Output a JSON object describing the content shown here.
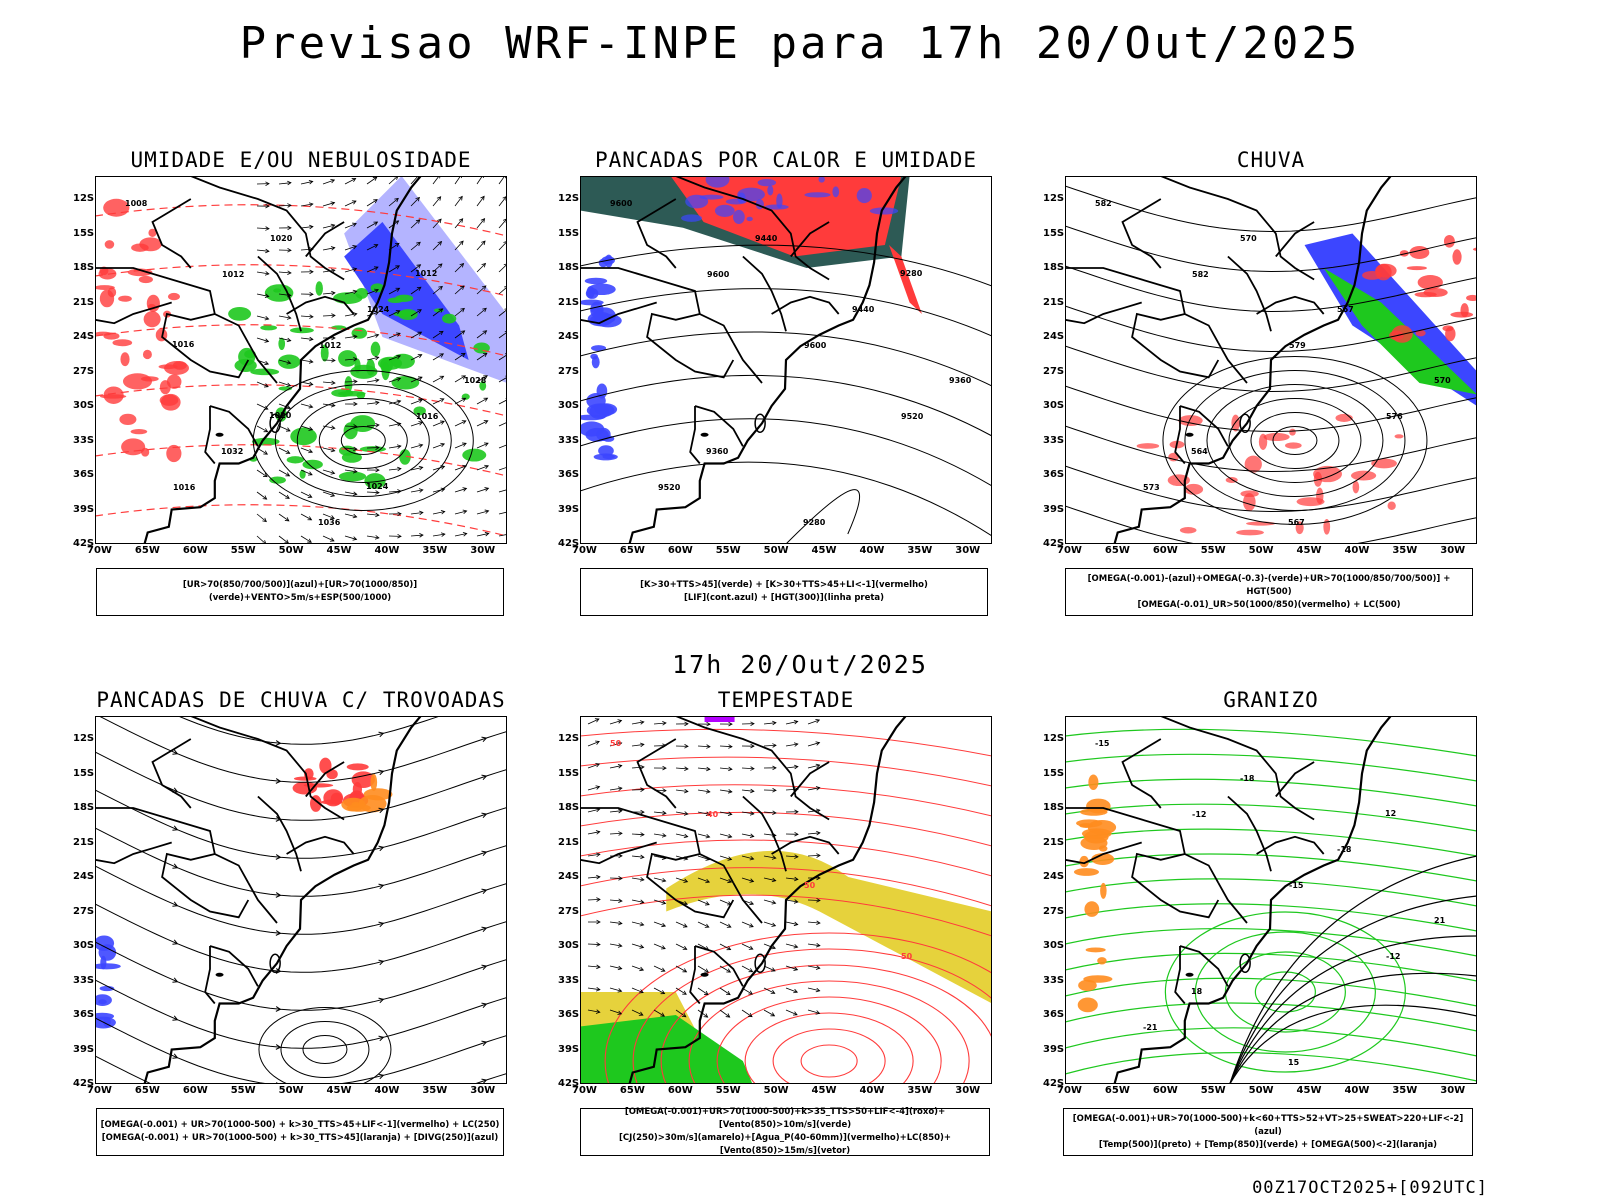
{
  "title": "Previsao WRF-INPE  para 17h 20/Out/2025",
  "mid_title": "17h 20/Out/2025",
  "footer": "00Z17OCT2025+[092UTC]",
  "lat_labels": [
    "12S",
    "15S",
    "18S",
    "21S",
    "24S",
    "27S",
    "30S",
    "33S",
    "36S",
    "39S",
    "42S"
  ],
  "lon_labels": [
    "70W",
    "65W",
    "60W",
    "55W",
    "50W",
    "45W",
    "40W",
    "35W",
    "30W"
  ],
  "panels": [
    {
      "title": "UMIDADE E/OU NEBULOSIDADE",
      "legend": [
        "[UR>70(850/700/500)](azul)+[UR>70(1000/850)](verde)+VENTO>5m/s+ESP(500/1000)"
      ],
      "labels": [
        "1008",
        "1012",
        "1012",
        "1016",
        "1016",
        "1020",
        "1024",
        "1028",
        "1032",
        "1036",
        "1012",
        "1016",
        "1020",
        "1024"
      ]
    },
    {
      "title": "PANCADAS POR CALOR E UMIDADE",
      "legend": [
        "[K>30+TTS>45](verde) + [K>30+TTS>45+LI<-1](vermelho)",
        "[LIF](cont.azul) + [HGT(300)](linha preta)"
      ],
      "labels": [
        "9600",
        "9600",
        "9600",
        "9520",
        "9520",
        "9440",
        "9440",
        "9360",
        "9360",
        "9280",
        "9280"
      ]
    },
    {
      "title": "CHUVA",
      "legend": [
        "[OMEGA(-0.001)-(azul)+OMEGA(-0.3)-(verde)+UR>70(1000/850/700/500)] + HGT(500)",
        "[OMEGA(-0.01)_UR>50(1000/850)(vermelho) + LC(500)"
      ],
      "labels": [
        "582",
        "582",
        "579",
        "576",
        "573",
        "570",
        "567",
        "570",
        "564",
        "567"
      ]
    },
    {
      "title": "PANCADAS DE CHUVA C/ TROVOADAS",
      "legend": [
        "[OMEGA(-0.001) + UR>70(1000-500) + k>30_TTS>45+LIF<-1](vermelho) + LC(250)",
        "[OMEGA(-0.001) + UR>70(1000-500) + k>30_TTS>45](laranja) + [DIVG(250)](azul)"
      ],
      "labels": []
    },
    {
      "title": "TEMPESTADE",
      "legend": [
        "[OMEGA(-0.001)+UR>70(1000-500)+k>35_TTS>50+LIF<-4](roxo)+[Vento(850)>10m/s](verde)",
        "[CJ(250)>30m/s](amarelo)+[Agua_P(40-60mm)](vermelho)+LC(850)+[Vento(850)>15m/s](vetor)"
      ],
      "labels": [
        "50",
        "40",
        "50",
        "50"
      ]
    },
    {
      "title": "GRANIZO",
      "legend": [
        "[OMEGA(-0.001)+UR>70(1000-500)+k<60+TTS>52+VT>25+SWEAT>220+LIF<-2](azul)",
        "[Temp(500)](preto) + [Temp(850)](verde) + [OMEGA(500)<-2](laranja)"
      ],
      "labels": [
        "-15",
        "-12",
        "-15",
        "-12",
        "-21",
        "-18",
        "-18",
        "21",
        "18",
        "15",
        "12"
      ]
    }
  ],
  "colors": {
    "red": "#ff3b3b",
    "green": "#1ec81e",
    "blue": "#3c46ff",
    "lightblue": "#b4b4ff",
    "darkteal": "#2d5a55",
    "yellow": "#e6d23c",
    "orange": "#ff8c1e",
    "purple": "#b400ff"
  }
}
